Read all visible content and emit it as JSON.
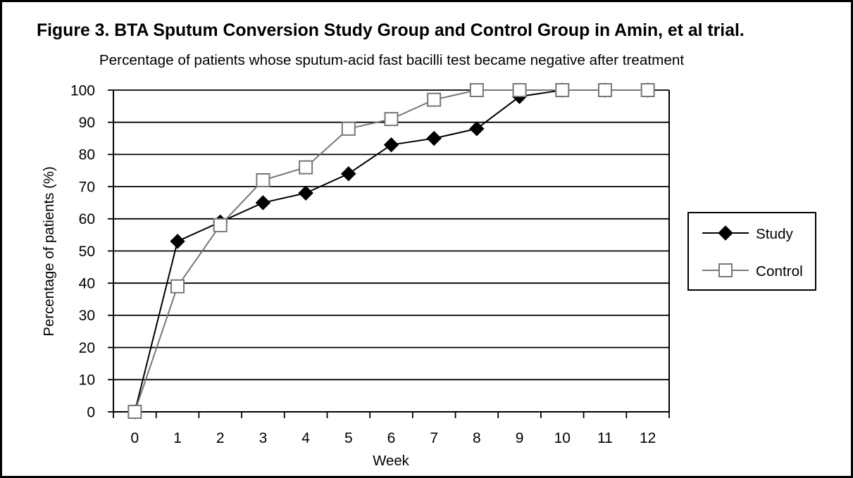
{
  "chart_data": {
    "type": "line",
    "title": "Figure 3. BTA Sputum Conversion Study Group and Control Group in Amin, et al trial.",
    "subtitle": "Percentage of patients whose sputum-acid fast bacilli test became negative after treatment",
    "xlabel": "Week",
    "ylabel": "Percentage of patients (%)",
    "categories": [
      "0",
      "1",
      "2",
      "3",
      "4",
      "5",
      "6",
      "7",
      "8",
      "9",
      "10",
      "11",
      "12"
    ],
    "ylim": [
      0,
      100
    ],
    "yticks": [
      0,
      10,
      20,
      30,
      40,
      50,
      60,
      70,
      80,
      90,
      100
    ],
    "grid": true,
    "legend": "right",
    "series": [
      {
        "name": "Study",
        "values": [
          0,
          53,
          59,
          65,
          68,
          74,
          83,
          85,
          88,
          98,
          100,
          100,
          100
        ],
        "color": "#000000",
        "marker": "diamond",
        "marker_fill": "#000000"
      },
      {
        "name": "Control",
        "values": [
          0,
          39,
          58,
          72,
          76,
          88,
          91,
          97,
          100,
          100,
          100,
          100,
          100
        ],
        "color": "#777777",
        "marker": "square",
        "marker_fill": "#ffffff"
      }
    ]
  }
}
